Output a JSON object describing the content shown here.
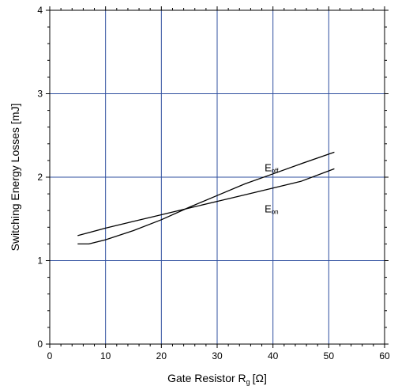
{
  "chart_data": {
    "type": "line",
    "title": "",
    "xlabel": "Gate Resistor R",
    "xlabel_subscript": "g",
    "xlabel_unit": "[Ω]",
    "ylabel": "Switching Energy Losses [mJ]",
    "xlim": [
      0,
      60
    ],
    "ylim": [
      0,
      4
    ],
    "xticks": [
      "0",
      "10",
      "20",
      "30",
      "40",
      "50",
      "60"
    ],
    "yticks": [
      "0",
      "1",
      "2",
      "3",
      "4"
    ],
    "grid": true,
    "grid_color": "#2f4f9f",
    "series": [
      {
        "name": "Eoff",
        "label_main": "E",
        "label_sub": "off",
        "x": [
          5,
          7,
          10,
          15,
          20,
          25,
          30,
          35,
          40,
          45,
          51
        ],
        "y": [
          1.2,
          1.2,
          1.25,
          1.36,
          1.49,
          1.64,
          1.78,
          1.92,
          2.04,
          2.16,
          2.3
        ]
      },
      {
        "name": "Eon",
        "label_main": "E",
        "label_sub": "on",
        "x": [
          5,
          10,
          15,
          20,
          25,
          30,
          35,
          40,
          45,
          51
        ],
        "y": [
          1.3,
          1.39,
          1.47,
          1.55,
          1.63,
          1.71,
          1.79,
          1.87,
          1.95,
          2.1
        ]
      }
    ]
  }
}
